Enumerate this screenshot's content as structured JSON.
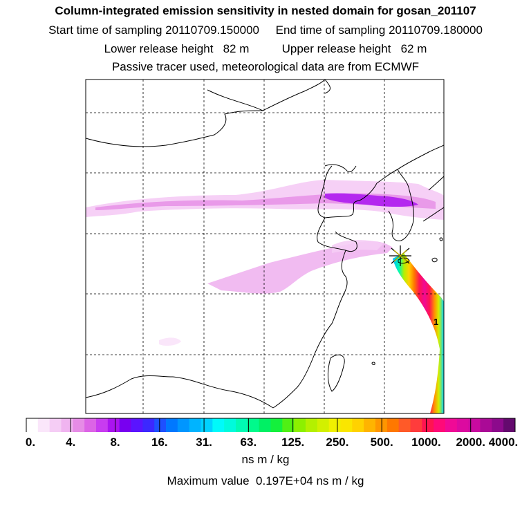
{
  "header": {
    "title": "Column-integrated emission sensitivity in nested domain for gosan_201107",
    "line2": "Start time of sampling 20110709.150000     End time of sampling 20110709.180000",
    "line3": "Lower release height   82 m          Upper release height   62 m",
    "line4": "Passive tracer used, meteorological data are from ECMWF"
  },
  "chart_data": {
    "type": "heatmap",
    "title": "Column-integrated emission sensitivity in nested domain for gosan_201107",
    "units": "ns m / kg",
    "max_value_text": "Maximum value  0.197E+04 ns m / kg",
    "max_value": 1970,
    "receptor": "gosan",
    "colorbar": {
      "tick_labels": [
        "0.",
        "4.",
        "8.",
        "16.",
        "31.",
        "63.",
        "125.",
        "250.",
        "500.",
        "1000.",
        "2000.",
        "4000."
      ],
      "colors": [
        "#ffffff",
        "#fae6fa",
        "#f5cdf5",
        "#f0b4f0",
        "#e68ce6",
        "#dc64e6",
        "#c83cf0",
        "#aa14f0",
        "#7800f0",
        "#5a14ff",
        "#3c28ff",
        "#1e50ff",
        "#0078ff",
        "#0096ff",
        "#00b4ff",
        "#00d2ff",
        "#00fafa",
        "#00fadc",
        "#00fab4",
        "#00fa8c",
        "#00f064",
        "#14f03c",
        "#50f014",
        "#8cf000",
        "#b4f000",
        "#d2f000",
        "#f0f000",
        "#fae600",
        "#ffd200",
        "#ffb400",
        "#ff9600",
        "#ff7800",
        "#ff5a28",
        "#ff3c3c",
        "#ff1450",
        "#ff0a78",
        "#f00a96",
        "#dc0aa0",
        "#c80aa0",
        "#aa0a96",
        "#8c0a8c",
        "#640a6e"
      ]
    },
    "layers": [
      {
        "name": "westerly-band",
        "level": "4-8"
      },
      {
        "name": "korea-band-core",
        "level": "8"
      },
      {
        "name": "inland-tongue",
        "level": "4"
      },
      {
        "name": "coastal-plume-core",
        "level": "1000-2000"
      }
    ]
  }
}
